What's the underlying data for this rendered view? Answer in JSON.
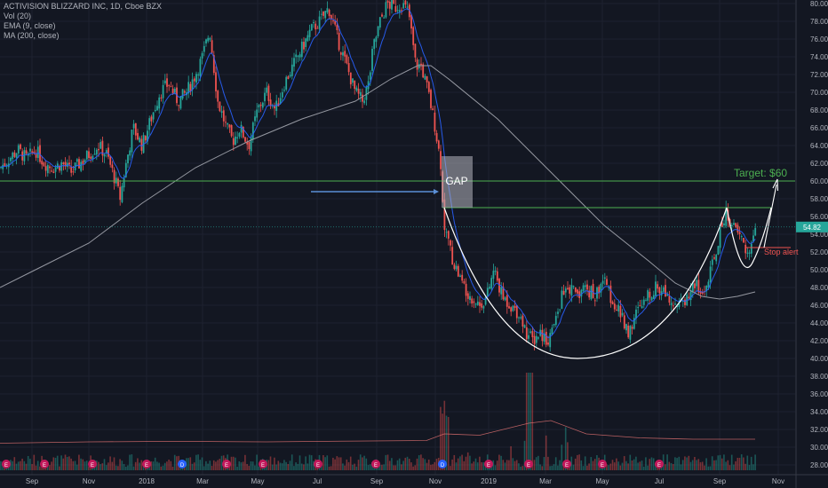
{
  "legend": {
    "title": "ACTIVISION BLIZZARD INC, 1D, Cboe BZX",
    "vol": "Vol (20)",
    "ema": "EMA (9, close)",
    "ma": "MA (200, close)"
  },
  "chart_data": {
    "type": "candlestick",
    "price_axis": {
      "ticks": [
        "80.00",
        "78.00",
        "76.00",
        "74.00",
        "72.00",
        "70.00",
        "68.00",
        "66.00",
        "64.00",
        "62.00",
        "60.00",
        "58.00",
        "56.00",
        "54.00",
        "52.00",
        "50.00",
        "48.00",
        "46.00",
        "44.00",
        "42.00",
        "40.00",
        "38.00",
        "36.00",
        "34.00",
        "32.00",
        "30.00",
        "28.00"
      ],
      "range": [
        27,
        80.5
      ]
    },
    "time_axis": {
      "labels": [
        "Sep",
        "Nov",
        "2018",
        "Mar",
        "May",
        "Jul",
        "Sep",
        "Nov",
        "2019",
        "Mar",
        "May",
        "Jul",
        "Sep",
        "Nov"
      ]
    },
    "last_price": "54.82",
    "price_path": [
      [
        0,
        61.5
      ],
      [
        10,
        62.5
      ],
      [
        20,
        63.5
      ],
      [
        30,
        62.5
      ],
      [
        40,
        63.5
      ],
      [
        50,
        62
      ],
      [
        60,
        61.5
      ],
      [
        70,
        62
      ],
      [
        80,
        61
      ],
      [
        90,
        62
      ],
      [
        100,
        63
      ],
      [
        110,
        64
      ],
      [
        120,
        63
      ],
      [
        130,
        60
      ],
      [
        135,
        58
      ],
      [
        142,
        62
      ],
      [
        150,
        66
      ],
      [
        160,
        64
      ],
      [
        170,
        67
      ],
      [
        180,
        70
      ],
      [
        190,
        71
      ],
      [
        200,
        69
      ],
      [
        210,
        70
      ],
      [
        220,
        72
      ],
      [
        228,
        74
      ],
      [
        236,
        77
      ],
      [
        245,
        69
      ],
      [
        255,
        66
      ],
      [
        262,
        64.5
      ],
      [
        270,
        66
      ],
      [
        280,
        64
      ],
      [
        290,
        68
      ],
      [
        300,
        70
      ],
      [
        310,
        68
      ],
      [
        320,
        71
      ],
      [
        330,
        73
      ],
      [
        340,
        75
      ],
      [
        350,
        77
      ],
      [
        360,
        78
      ],
      [
        370,
        79.5
      ],
      [
        380,
        76
      ],
      [
        390,
        73
      ],
      [
        400,
        70
      ],
      [
        408,
        69
      ],
      [
        415,
        71
      ],
      [
        420,
        75
      ],
      [
        428,
        78
      ],
      [
        436,
        80
      ],
      [
        444,
        79.5
      ],
      [
        452,
        80
      ],
      [
        460,
        79
      ],
      [
        468,
        73
      ],
      [
        474,
        73
      ],
      [
        482,
        70
      ],
      [
        490,
        66
      ],
      [
        496,
        62
      ],
      [
        500,
        55
      ],
      [
        505,
        53
      ],
      [
        510,
        51
      ],
      [
        520,
        48.5
      ],
      [
        530,
        47
      ],
      [
        540,
        46
      ],
      [
        548,
        47
      ],
      [
        556,
        50
      ],
      [
        565,
        47
      ],
      [
        575,
        46
      ],
      [
        585,
        45
      ],
      [
        592,
        43
      ],
      [
        600,
        42
      ],
      [
        608,
        43
      ],
      [
        616,
        42
      ],
      [
        625,
        44
      ],
      [
        632,
        47
      ],
      [
        640,
        48
      ],
      [
        650,
        47.5
      ],
      [
        660,
        48
      ],
      [
        670,
        47
      ],
      [
        678,
        49
      ],
      [
        690,
        46.5
      ],
      [
        700,
        44.5
      ],
      [
        708,
        43
      ],
      [
        716,
        45
      ],
      [
        724,
        46
      ],
      [
        732,
        47.5
      ],
      [
        740,
        48
      ],
      [
        750,
        47.5
      ],
      [
        758,
        46.5
      ],
      [
        766,
        46
      ],
      [
        774,
        47
      ],
      [
        782,
        48.5
      ],
      [
        790,
        47
      ],
      [
        798,
        49
      ],
      [
        806,
        52
      ],
      [
        812,
        55
      ],
      [
        818,
        56.5
      ],
      [
        824,
        55
      ],
      [
        830,
        54
      ],
      [
        836,
        53.5
      ],
      [
        840,
        51.5
      ],
      [
        846,
        53
      ],
      [
        852,
        54.8
      ]
    ],
    "ma200": [
      [
        0,
        48
      ],
      [
        40,
        50
      ],
      [
        100,
        53
      ],
      [
        160,
        57.5
      ],
      [
        220,
        61.5
      ],
      [
        280,
        64.5
      ],
      [
        340,
        67
      ],
      [
        400,
        69
      ],
      [
        440,
        71.5
      ],
      [
        470,
        73
      ],
      [
        485,
        73
      ],
      [
        505,
        71.5
      ],
      [
        560,
        67
      ],
      [
        620,
        61
      ],
      [
        680,
        55
      ],
      [
        730,
        51
      ],
      [
        760,
        48.5
      ],
      [
        790,
        47
      ],
      [
        810,
        46.7
      ],
      [
        830,
        47
      ],
      [
        850,
        47.5
      ]
    ],
    "volume_avg": [
      [
        0,
        0.35
      ],
      [
        100,
        0.4
      ],
      [
        200,
        0.42
      ],
      [
        300,
        0.4
      ],
      [
        400,
        0.43
      ],
      [
        480,
        0.45
      ],
      [
        500,
        0.7
      ],
      [
        540,
        0.65
      ],
      [
        595,
        1.1
      ],
      [
        620,
        1.2
      ],
      [
        660,
        0.7
      ],
      [
        720,
        0.55
      ],
      [
        780,
        0.5
      ],
      [
        850,
        0.5
      ]
    ],
    "annotations": {
      "gap_label": "GAP",
      "target_label": "Target: $60",
      "stop_label": "Stop alert",
      "support_label": "",
      "target_price": 60,
      "cup_rim_price": 57,
      "stop_price": 52.5
    },
    "event_markers": [
      "E",
      "E",
      "E",
      "E",
      "D",
      "E",
      "E",
      "E",
      "E",
      "D",
      "E",
      "E",
      "E",
      "E",
      "E"
    ]
  }
}
